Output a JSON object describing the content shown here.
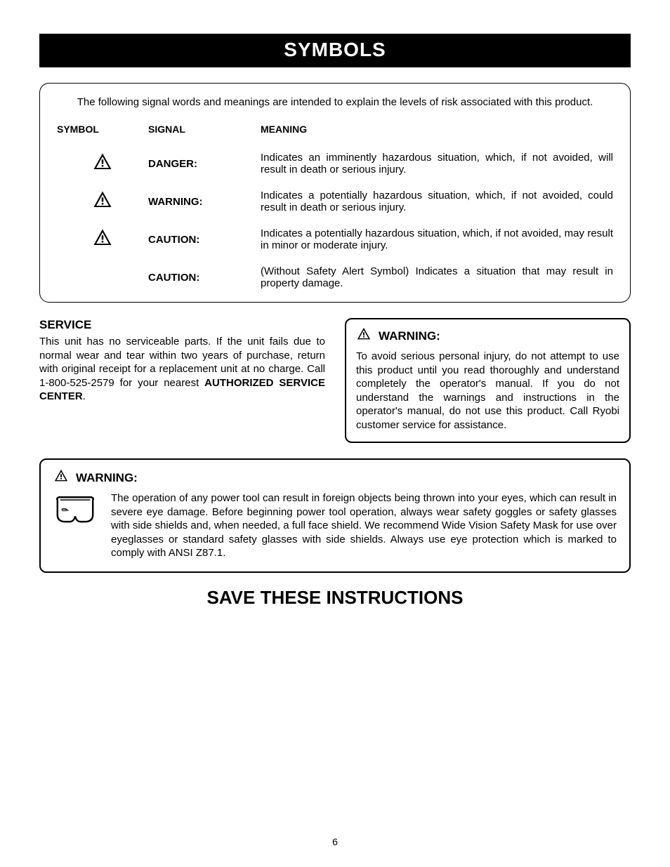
{
  "colors": {
    "page_bg": "#ffffff",
    "title_bg": "#000000",
    "title_fg": "#ffffff",
    "text": "#000000",
    "border": "#000000"
  },
  "title": "SYMBOLS",
  "signal_intro": "The following signal words and meanings are intended to explain the levels of risk associated with this product.",
  "signal_headers": {
    "symbol": "SYMBOL",
    "signal": "SIGNAL",
    "meaning": "MEANING"
  },
  "signal_rows": [
    {
      "has_icon": true,
      "signal": "DANGER:",
      "meaning": "Indicates an imminently hazardous situation, which, if not avoided, will result in death or serious injury."
    },
    {
      "has_icon": true,
      "signal": "WARNING:",
      "meaning": "Indicates a potentially hazardous situation, which, if not avoided, could result in death or serious injury."
    },
    {
      "has_icon": true,
      "signal": "CAUTION:",
      "meaning": "Indicates a potentially hazardous situation, which, if not avoided, may result in minor or moderate injury."
    },
    {
      "has_icon": false,
      "signal": "CAUTION:",
      "meaning": "(Without Safety Alert Symbol) Indicates a situation that may result in property damage."
    }
  ],
  "service": {
    "heading": "SERVICE",
    "body_pre": "This unit has no serviceable parts. If the unit fails due to normal wear and tear within two years of purchase, return with original receipt for a replacement unit at no charge. Call 1-800-525-2579 for your nearest ",
    "asc": "AUTHORIZED SERVICE CENTER",
    "body_post": "."
  },
  "warning_right": {
    "label": "WARNING:",
    "body": "To avoid serious personal injury, do not attempt to use this product until you read thoroughly and understand completely the operator's manual. If you do not understand the warnings and instructions in the operator's manual, do not use this product. Call Ryobi customer service for assistance."
  },
  "warning_wide": {
    "label": "WARNING:",
    "body": "The operation of any power tool can result in foreign objects being thrown into your eyes, which can result in severe eye damage. Before beginning power tool operation, always wear safety goggles or safety glasses with side shields and, when needed, a full face shield. We recommend Wide Vision Safety Mask for use over eyeglasses or standard safety glasses with side shields. Always use eye protection which is marked to comply with ANSI Z87.1."
  },
  "save_line": "SAVE THESE INSTRUCTIONS",
  "page_number": "6",
  "icons": {
    "alert_size": 30,
    "alert_size_small": 22,
    "goggle_size": 62
  }
}
